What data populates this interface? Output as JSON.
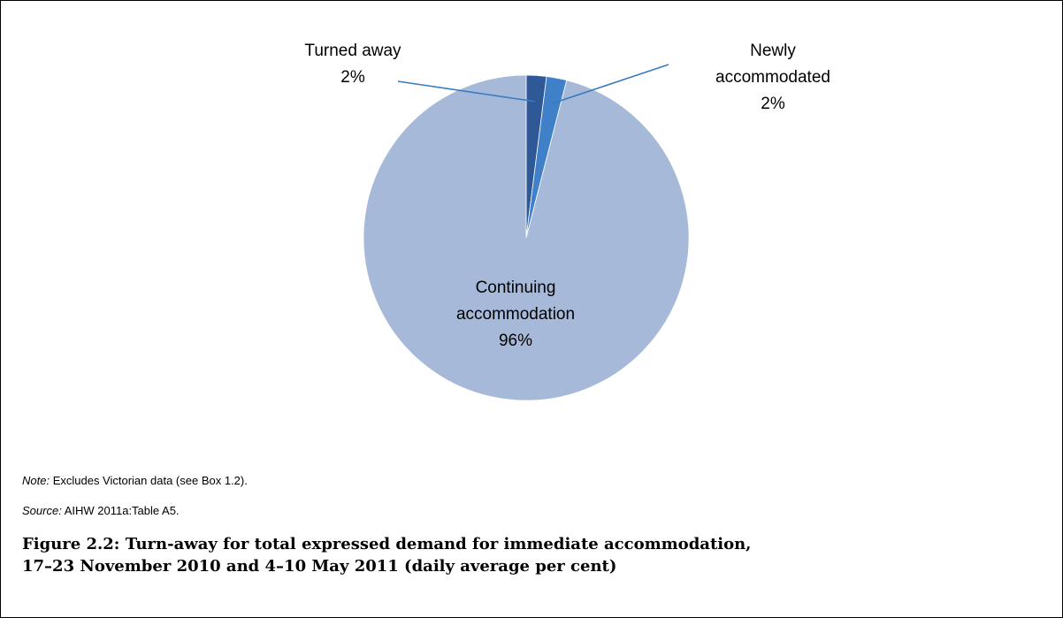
{
  "chart_data": {
    "type": "pie",
    "title": "",
    "slices": [
      {
        "label_lines": [
          "Turned away",
          "2%"
        ],
        "value": 2,
        "color": "#2E5896"
      },
      {
        "label_lines": [
          "Newly",
          "accommodated",
          "2%"
        ],
        "value": 2,
        "color": "#3F80C8"
      },
      {
        "label_lines": [
          "Continuing",
          "accommodation",
          "96%"
        ],
        "value": 96,
        "color": "#A6B9D9"
      }
    ],
    "leader_line_color": "#3A7BC0",
    "legend": "none"
  },
  "note": {
    "label": "Note:",
    "text": " Excludes Victorian data (see Box 1.2)."
  },
  "source": {
    "label": "Source:",
    "text": " AIHW 2011a:Table A5."
  },
  "caption": {
    "line1": "Figure 2.2: Turn-away for total expressed demand for immediate accommodation,",
    "line2": "17–23 November 2010 and 4–10 May 2011 (daily average per cent)"
  }
}
